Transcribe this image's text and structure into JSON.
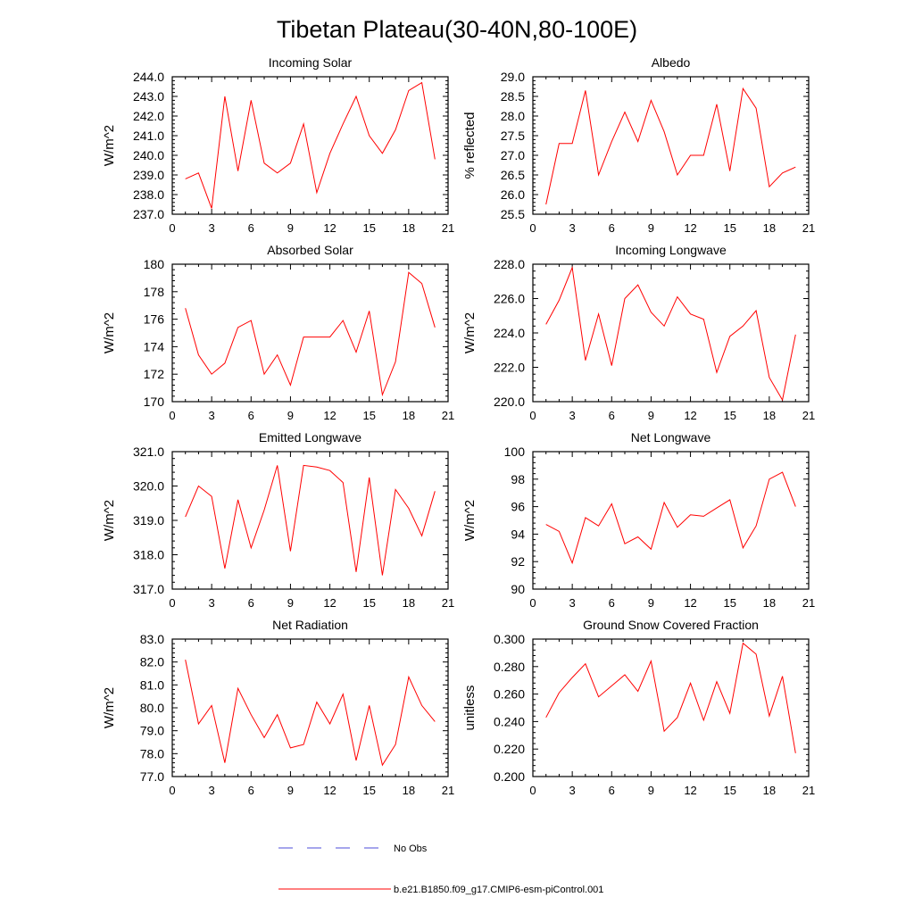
{
  "page": {
    "title": "Tibetan Plateau(30-40N,80-100E)"
  },
  "legend": [
    {
      "label": "No Obs",
      "color": "#4c4cd8",
      "dash": true
    },
    {
      "label": "b.e21.B1850.f09_g17.CMIP6-esm-piControl.001",
      "color": "#ff0000",
      "dash": false
    }
  ],
  "chart_data": [
    {
      "type": "line",
      "title": "Incoming Solar",
      "xlabel": "",
      "ylabel": "W/m^2",
      "xlim": [
        0,
        21
      ],
      "xticks": [
        0,
        3,
        6,
        9,
        12,
        15,
        18,
        21
      ],
      "ylim": [
        237.0,
        244.0
      ],
      "yticks": [
        "237.0",
        "238.0",
        "239.0",
        "240.0",
        "241.0",
        "242.0",
        "243.0",
        "244.0"
      ],
      "x": [
        1,
        2,
        3,
        4,
        5,
        6,
        7,
        8,
        9,
        10,
        11,
        12,
        13,
        14,
        15,
        16,
        17,
        18,
        19,
        20
      ],
      "series": [
        {
          "color": "#ff0000",
          "values": [
            238.8,
            239.1,
            237.3,
            243.0,
            239.2,
            242.8,
            239.6,
            239.1,
            239.6,
            241.6,
            238.1,
            240.1,
            241.6,
            243.0,
            241.0,
            240.1,
            241.3,
            243.3,
            243.7,
            239.8
          ]
        }
      ]
    },
    {
      "type": "line",
      "title": "Albedo",
      "xlabel": "",
      "ylabel": "% reflected",
      "xlim": [
        0,
        21
      ],
      "xticks": [
        0,
        3,
        6,
        9,
        12,
        15,
        18,
        21
      ],
      "ylim": [
        25.5,
        29.0
      ],
      "yticks": [
        "25.5",
        "26.0",
        "26.5",
        "27.0",
        "27.5",
        "28.0",
        "28.5",
        "29.0"
      ],
      "x": [
        1,
        2,
        3,
        4,
        5,
        6,
        7,
        8,
        9,
        10,
        11,
        12,
        13,
        14,
        15,
        16,
        17,
        18,
        19,
        20
      ],
      "series": [
        {
          "color": "#ff0000",
          "values": [
            25.75,
            27.3,
            27.3,
            28.65,
            26.5,
            27.35,
            28.1,
            27.35,
            28.4,
            27.6,
            26.5,
            27.0,
            27.0,
            28.3,
            26.6,
            28.7,
            28.2,
            26.2,
            26.55,
            26.7
          ]
        }
      ]
    },
    {
      "type": "line",
      "title": "Absorbed Solar",
      "xlabel": "",
      "ylabel": "W/m^2",
      "xlim": [
        0,
        21
      ],
      "xticks": [
        0,
        3,
        6,
        9,
        12,
        15,
        18,
        21
      ],
      "ylim": [
        170,
        180
      ],
      "yticks": [
        "170",
        "172",
        "174",
        "176",
        "178",
        "180"
      ],
      "x": [
        1,
        2,
        3,
        4,
        5,
        6,
        7,
        8,
        9,
        10,
        11,
        12,
        13,
        14,
        15,
        16,
        17,
        18,
        19,
        20
      ],
      "series": [
        {
          "color": "#ff0000",
          "values": [
            176.8,
            173.4,
            172.0,
            172.8,
            175.4,
            175.9,
            172.0,
            173.4,
            171.2,
            174.7,
            174.7,
            174.7,
            175.9,
            173.6,
            176.6,
            170.5,
            172.9,
            179.4,
            178.6,
            175.4
          ]
        }
      ]
    },
    {
      "type": "line",
      "title": "Incoming Longwave",
      "xlabel": "",
      "ylabel": "W/m^2",
      "xlim": [
        0,
        21
      ],
      "xticks": [
        0,
        3,
        6,
        9,
        12,
        15,
        18,
        21
      ],
      "ylim": [
        220.0,
        228.0
      ],
      "yticks": [
        "220.0",
        "222.0",
        "224.0",
        "226.0",
        "228.0"
      ],
      "x": [
        1,
        2,
        3,
        4,
        5,
        6,
        7,
        8,
        9,
        10,
        11,
        12,
        13,
        14,
        15,
        16,
        17,
        18,
        19,
        20
      ],
      "series": [
        {
          "color": "#ff0000",
          "values": [
            224.5,
            225.9,
            227.8,
            222.4,
            225.1,
            222.1,
            226.0,
            226.8,
            225.2,
            224.4,
            226.1,
            225.1,
            224.8,
            221.7,
            223.8,
            224.4,
            225.3,
            221.4,
            220.1,
            223.9
          ]
        }
      ]
    },
    {
      "type": "line",
      "title": "Emitted Longwave",
      "xlabel": "",
      "ylabel": "W/m^2",
      "xlim": [
        0,
        21
      ],
      "xticks": [
        0,
        3,
        6,
        9,
        12,
        15,
        18,
        21
      ],
      "ylim": [
        317.0,
        321.0
      ],
      "yticks": [
        "317.0",
        "318.0",
        "319.0",
        "320.0",
        "321.0"
      ],
      "x": [
        1,
        2,
        3,
        4,
        5,
        6,
        7,
        8,
        9,
        10,
        11,
        12,
        13,
        14,
        15,
        16,
        17,
        18,
        19,
        20
      ],
      "series": [
        {
          "color": "#ff0000",
          "values": [
            319.1,
            320.0,
            319.7,
            317.6,
            319.6,
            318.2,
            319.3,
            320.6,
            318.1,
            320.6,
            320.55,
            320.45,
            320.1,
            317.5,
            320.25,
            317.4,
            319.9,
            319.35,
            318.55,
            319.85
          ]
        }
      ]
    },
    {
      "type": "line",
      "title": "Net Longwave",
      "xlabel": "",
      "ylabel": "W/m^2",
      "xlim": [
        0,
        21
      ],
      "xticks": [
        0,
        3,
        6,
        9,
        12,
        15,
        18,
        21
      ],
      "ylim": [
        90,
        100
      ],
      "yticks": [
        "90",
        "92",
        "94",
        "96",
        "98",
        "100"
      ],
      "x": [
        1,
        2,
        3,
        4,
        5,
        6,
        7,
        8,
        9,
        10,
        11,
        12,
        13,
        14,
        15,
        16,
        17,
        18,
        19,
        20
      ],
      "series": [
        {
          "color": "#ff0000",
          "values": [
            94.7,
            94.2,
            91.9,
            95.2,
            94.6,
            96.2,
            93.3,
            93.8,
            92.9,
            96.3,
            94.5,
            95.4,
            95.3,
            95.9,
            96.5,
            93.0,
            94.6,
            98.0,
            98.5,
            96.0
          ]
        }
      ]
    },
    {
      "type": "line",
      "title": "Net Radiation",
      "xlabel": "",
      "ylabel": "W/m^2",
      "xlim": [
        0,
        21
      ],
      "xticks": [
        0,
        3,
        6,
        9,
        12,
        15,
        18,
        21
      ],
      "ylim": [
        77.0,
        83.0
      ],
      "yticks": [
        "77.0",
        "78.0",
        "79.0",
        "80.0",
        "81.0",
        "82.0",
        "83.0"
      ],
      "x": [
        1,
        2,
        3,
        4,
        5,
        6,
        7,
        8,
        9,
        10,
        11,
        12,
        13,
        14,
        15,
        16,
        17,
        18,
        19,
        20
      ],
      "series": [
        {
          "color": "#ff0000",
          "values": [
            82.1,
            79.3,
            80.1,
            77.6,
            80.85,
            79.7,
            78.7,
            79.7,
            78.25,
            78.4,
            80.25,
            79.3,
            80.6,
            77.7,
            80.1,
            77.5,
            78.4,
            81.35,
            80.1,
            79.4
          ]
        }
      ]
    },
    {
      "type": "line",
      "title": "Ground Snow Covered Fraction",
      "xlabel": "",
      "ylabel": "unitless",
      "xlim": [
        0,
        21
      ],
      "xticks": [
        0,
        3,
        6,
        9,
        12,
        15,
        18,
        21
      ],
      "ylim": [
        0.2,
        0.3
      ],
      "yticks": [
        "0.200",
        "0.220",
        "0.240",
        "0.260",
        "0.280",
        "0.300"
      ],
      "x": [
        1,
        2,
        3,
        4,
        5,
        6,
        7,
        8,
        9,
        10,
        11,
        12,
        13,
        14,
        15,
        16,
        17,
        18,
        19,
        20
      ],
      "series": [
        {
          "color": "#ff0000",
          "values": [
            0.243,
            0.261,
            0.272,
            0.282,
            0.258,
            0.266,
            0.274,
            0.262,
            0.284,
            0.233,
            0.243,
            0.268,
            0.241,
            0.269,
            0.246,
            0.297,
            0.289,
            0.244,
            0.273,
            0.217
          ]
        }
      ]
    }
  ]
}
